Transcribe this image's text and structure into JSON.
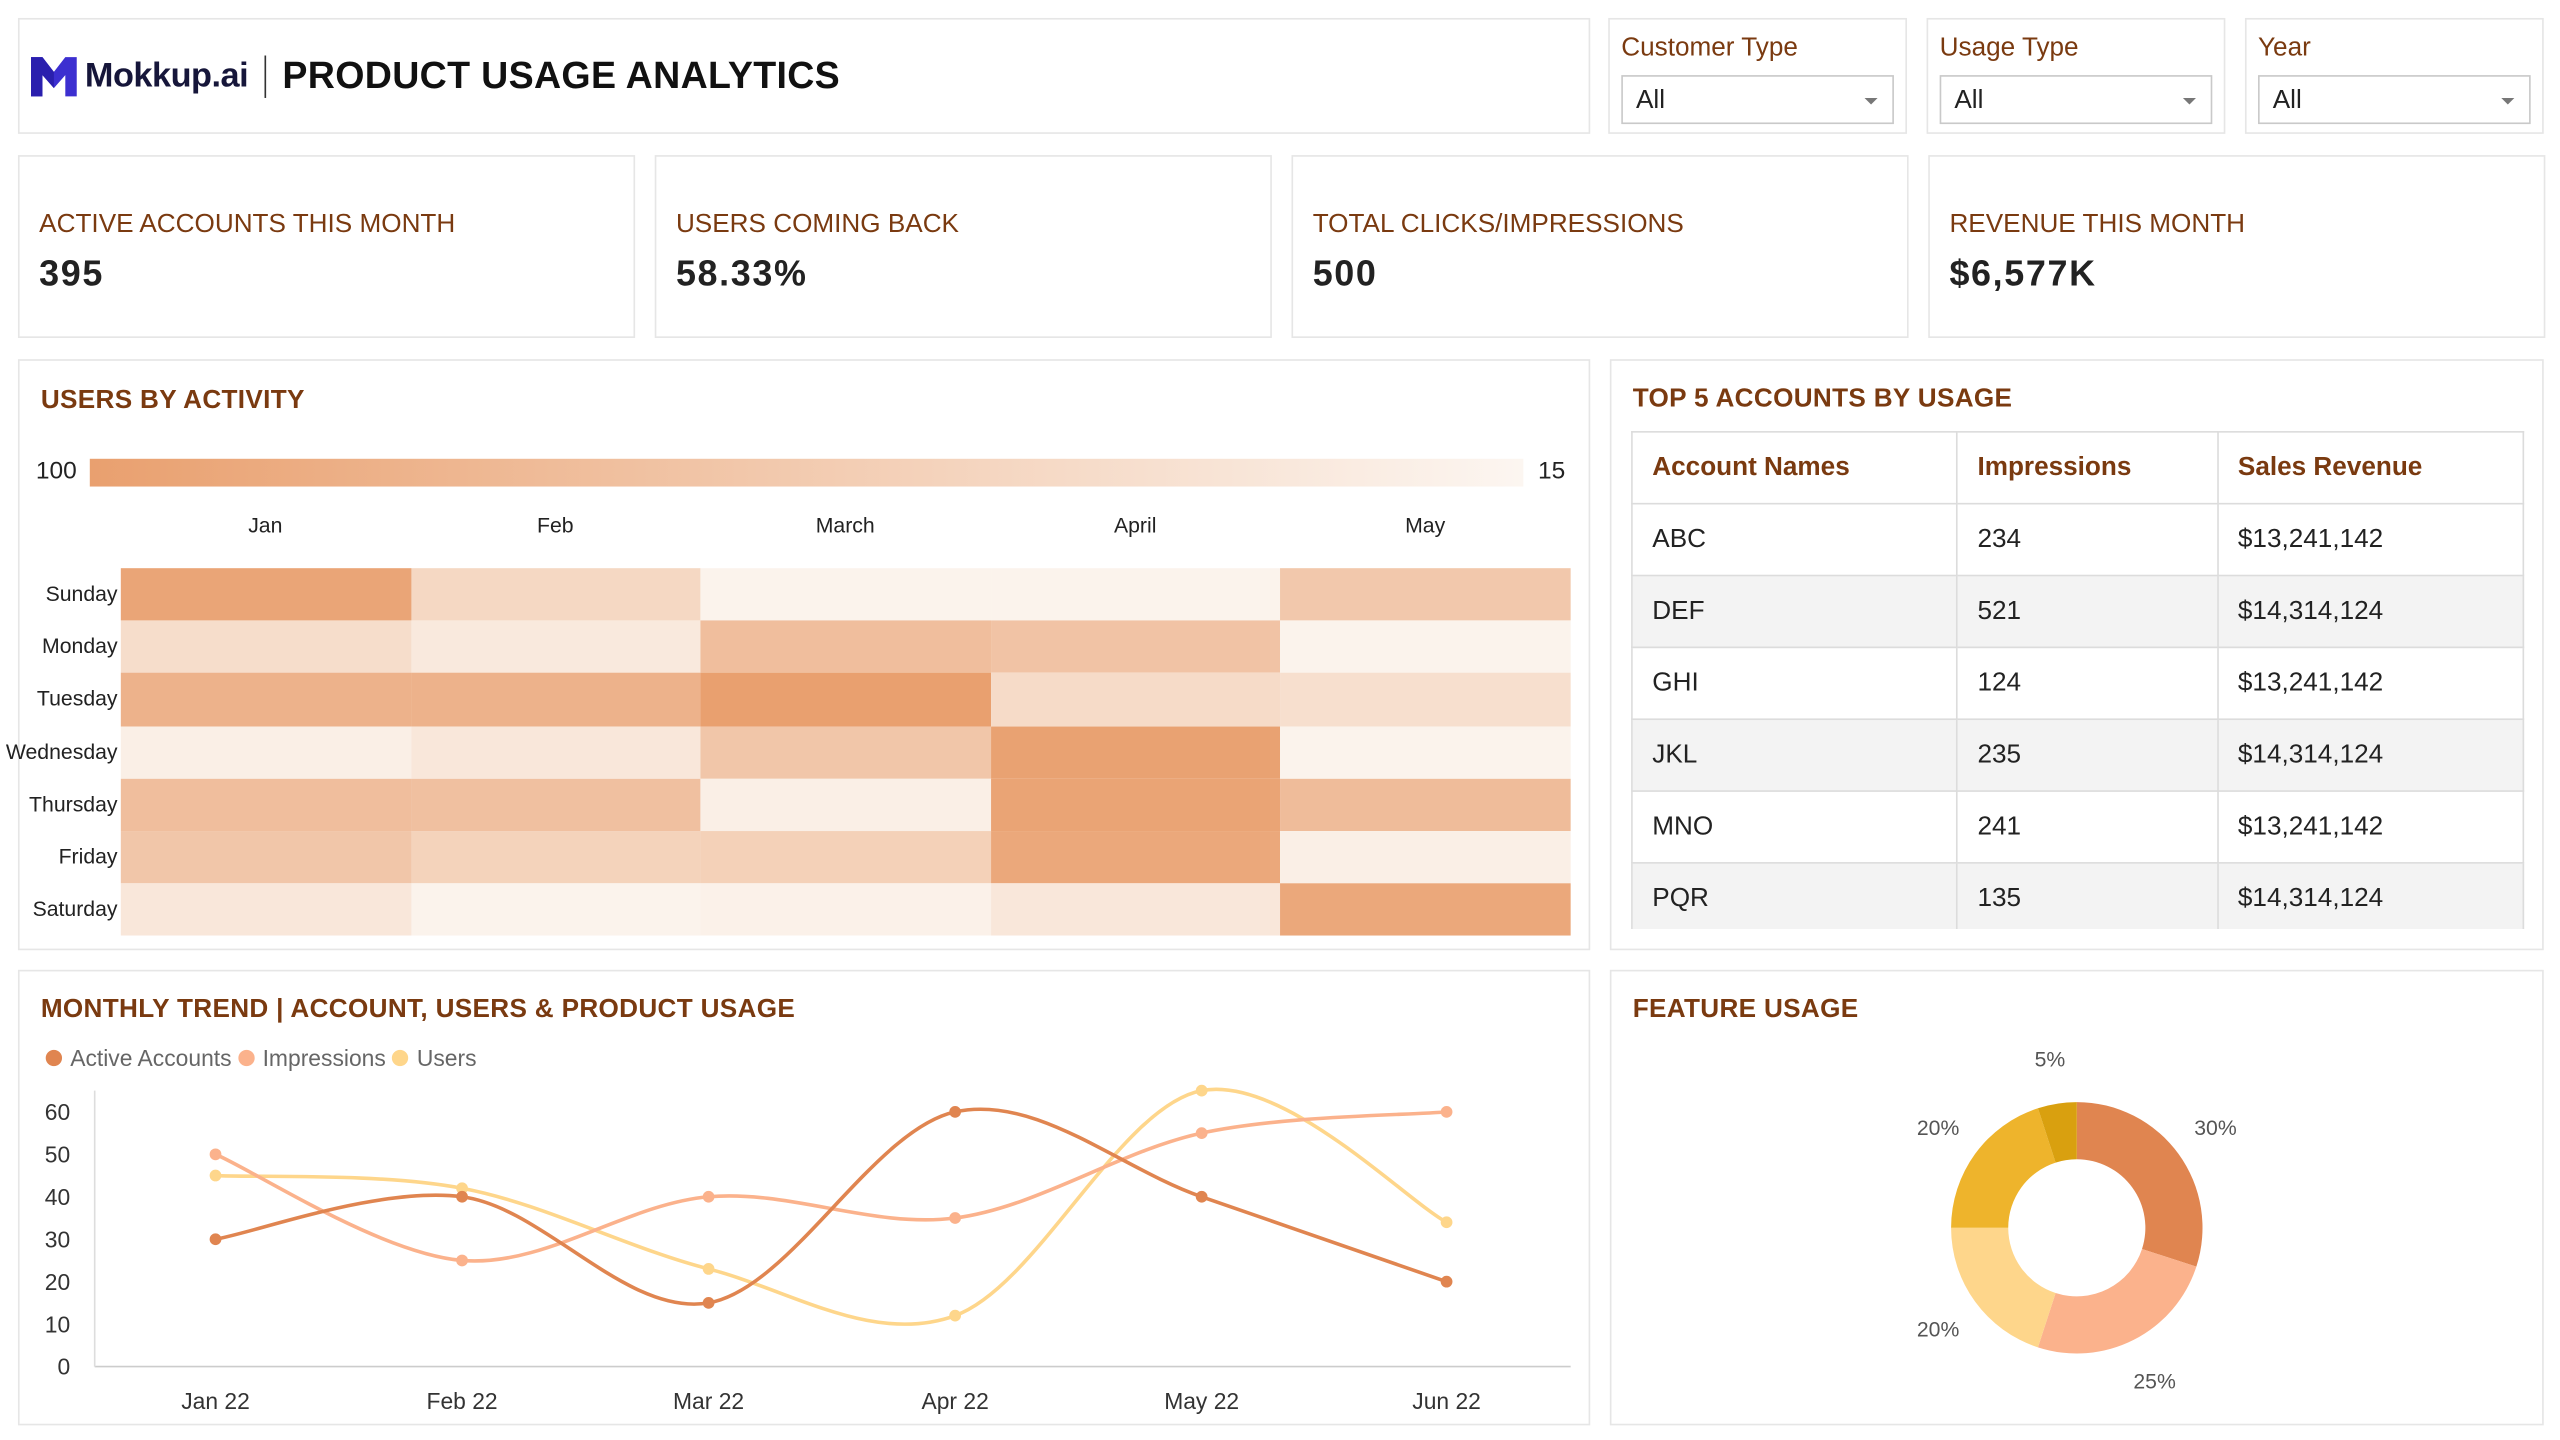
{
  "header": {
    "logo_text": "Mokkup.ai",
    "title": "PRODUCT USAGE ANALYTICS"
  },
  "filters": [
    {
      "label": "Customer Type",
      "value": "All"
    },
    {
      "label": "Usage Type",
      "value": "All"
    },
    {
      "label": "Year",
      "value": "All"
    }
  ],
  "kpis": [
    {
      "label": "ACTIVE ACCOUNTS THIS MONTH",
      "value": "395"
    },
    {
      "label": "USERS COMING BACK",
      "value": "58.33%"
    },
    {
      "label": "TOTAL CLICKS/IMPRESSIONS",
      "value": "500"
    },
    {
      "label": "REVENUE THIS MONTH",
      "value": "$6,577K"
    }
  ],
  "heatmap": {
    "title": "USERS BY ACTIVITY",
    "scale_max": "100",
    "scale_min": "15",
    "months": [
      "Jan",
      "Feb",
      "March",
      "April",
      "May"
    ],
    "days": [
      "Sunday",
      "Monday",
      "Tuesday",
      "Wednesday",
      "Thursday",
      "Friday",
      "Saturday"
    ],
    "colors": {
      "high": "#e9a06f",
      "low": "#fcf6f1"
    },
    "values": [
      [
        95,
        45,
        18,
        18,
        60
      ],
      [
        40,
        28,
        70,
        65,
        18
      ],
      [
        82,
        82,
        100,
        42,
        38
      ],
      [
        22,
        30,
        62,
        98,
        18
      ],
      [
        70,
        68,
        22,
        96,
        72
      ],
      [
        62,
        50,
        52,
        92,
        22
      ],
      [
        30,
        18,
        20,
        30,
        92
      ]
    ]
  },
  "top_accounts": {
    "title": "TOP 5 ACCOUNTS BY USAGE",
    "columns": [
      "Account Names",
      "Impressions",
      "Sales Revenue"
    ],
    "rows": [
      [
        "ABC",
        "234",
        "$13,241,142"
      ],
      [
        "DEF",
        "521",
        "$14,314,124"
      ],
      [
        "GHI",
        "124",
        "$13,241,142"
      ],
      [
        "JKL",
        "235",
        "$14,314,124"
      ],
      [
        "MNO",
        "241",
        "$13,241,142"
      ],
      [
        "PQR",
        "135",
        "$14,314,124"
      ]
    ]
  },
  "chart_data": [
    {
      "type": "line",
      "title": "MONTHLY TREND | ACCOUNT, USERS & PRODUCT USAGE",
      "categories": [
        "Jan 22",
        "Feb 22",
        "Mar 22",
        "Apr 22",
        "May 22",
        "Jun 22"
      ],
      "y_ticks": [
        "0",
        "10",
        "20",
        "30",
        "40",
        "50",
        "60"
      ],
      "ylim": [
        0,
        65
      ],
      "legend_position": "top-left",
      "series": [
        {
          "name": "Active Accounts",
          "color": "#e08550",
          "values": [
            30,
            40,
            15,
            60,
            40,
            20
          ]
        },
        {
          "name": "Impressions",
          "color": "#fbb28c",
          "values": [
            50,
            25,
            40,
            35,
            55,
            60
          ]
        },
        {
          "name": "Users",
          "color": "#fed68b",
          "values": [
            45,
            42,
            23,
            12,
            65,
            34
          ]
        }
      ]
    },
    {
      "type": "pie",
      "title": "FEATURE USAGE",
      "labels": [
        "30%",
        "25%",
        "20%",
        "20%",
        "5%"
      ],
      "values": [
        30,
        25,
        20,
        20,
        5
      ],
      "colors": [
        "#e08550",
        "#fbb28c",
        "#fed68b",
        "#eeb42c",
        "#d9a00f"
      ]
    }
  ]
}
